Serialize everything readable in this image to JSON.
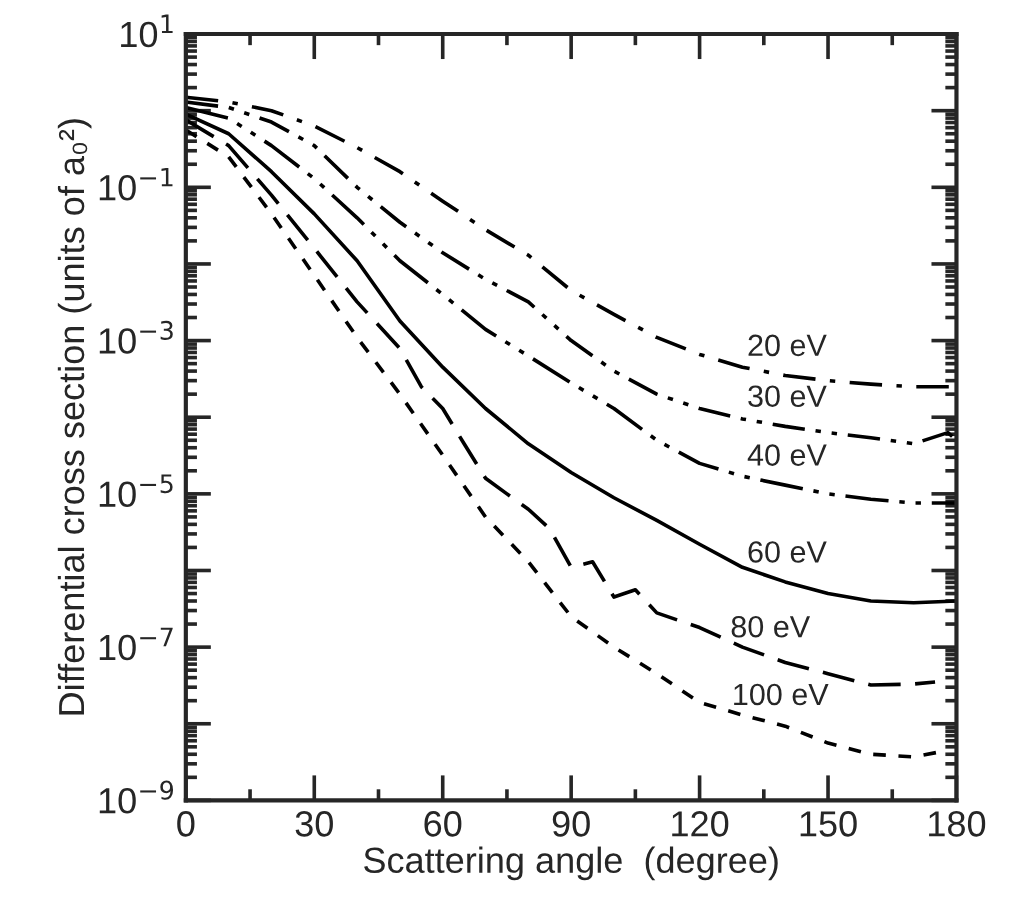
{
  "chart_data": {
    "type": "line",
    "xlabel": "Scattering angle  (degree)",
    "ylabel": "Differential cross section (units of a₀²)",
    "log": "y",
    "grid": false,
    "legend": false,
    "marker": "none",
    "xlim": [
      0,
      180
    ],
    "xticks": [
      0,
      30,
      60,
      90,
      120,
      150,
      180
    ],
    "ylim": [
      1e-09,
      10
    ],
    "yticks": [
      {
        "value": 10,
        "label": "10$^{1}$"
      },
      {
        "value": 1,
        "label": null
      },
      {
        "value": 0.1,
        "label": "10$^{−1}$"
      },
      {
        "value": 0.01,
        "label": null
      },
      {
        "value": 0.001,
        "label": "10$^{−3}$"
      },
      {
        "value": 0.0001,
        "label": null
      },
      {
        "value": 1e-05,
        "label": "10$^{−5}$"
      },
      {
        "value": 1e-06,
        "label": null
      },
      {
        "value": 1e-07,
        "label": "10$^{−7}$"
      },
      {
        "value": 1e-08,
        "label": null
      },
      {
        "value": 1e-09,
        "label": "10$^{−9}$"
      }
    ],
    "series": [
      {
        "name": "20 eV",
        "color": "#000000",
        "line_style": "dashdot",
        "x": [
          0,
          10,
          20,
          30,
          40,
          50,
          60,
          70,
          80,
          90,
          100,
          110,
          120,
          130,
          140,
          150,
          160,
          170,
          180
        ],
        "values": [
          1.5,
          1.3,
          1.0,
          0.63,
          0.33,
          0.16,
          0.066,
          0.028,
          0.013,
          0.0045,
          0.0022,
          0.0011,
          0.00066,
          0.00045,
          0.00035,
          0.0003,
          0.00027,
          0.00025,
          0.00025
        ]
      },
      {
        "name": "30 eV",
        "color": "#000000",
        "line_style": "dashdotdot",
        "x": [
          0,
          10,
          20,
          30,
          40,
          50,
          60,
          70,
          80,
          90,
          100,
          110,
          120,
          130,
          140,
          150,
          160,
          170,
          178,
          180
        ],
        "values": [
          1.3,
          1.1,
          0.71,
          0.35,
          0.1,
          0.035,
          0.014,
          0.0063,
          0.0032,
          0.001,
          0.0004,
          0.0002,
          0.00013,
          9.5e-05,
          7.6e-05,
          6.3e-05,
          5.4e-05,
          4.5e-05,
          6.3e-05,
          5e-05
        ]
      },
      {
        "name": "40 eV",
        "color": "#000000",
        "line_style": "longdashdotdot",
        "x": [
          0,
          10,
          20,
          30,
          40,
          50,
          60,
          70,
          80,
          90,
          100,
          110,
          120,
          130,
          140,
          150,
          160,
          170,
          180
        ],
        "values": [
          1.1,
          0.8,
          0.35,
          0.13,
          0.04,
          0.011,
          0.004,
          0.0014,
          0.00063,
          0.00028,
          0.00013,
          5e-05,
          2.5e-05,
          1.7e-05,
          1.3e-05,
          1e-05,
          8.5e-06,
          7.6e-06,
          7.6e-06
        ]
      },
      {
        "name": "60 eV",
        "color": "#000000",
        "line_style": "solid",
        "x": [
          0,
          10,
          20,
          30,
          40,
          50,
          60,
          70,
          80,
          90,
          100,
          110,
          120,
          130,
          140,
          150,
          160,
          170,
          180
        ],
        "values": [
          0.9,
          0.5,
          0.16,
          0.045,
          0.011,
          0.0018,
          0.00045,
          0.00013,
          4.5e-05,
          1.9e-05,
          8.9e-06,
          4.5e-06,
          2.2e-06,
          1.1e-06,
          7.1e-07,
          5e-07,
          4e-07,
          3.8e-07,
          4e-07
        ]
      },
      {
        "name": "80 eV",
        "color": "#000000",
        "line_style": "dashed",
        "x": [
          0,
          10,
          20,
          30,
          40,
          50,
          55,
          60,
          65,
          70,
          75,
          80,
          85,
          90,
          95,
          100,
          105,
          110,
          120,
          130,
          140,
          150,
          160,
          170,
          175
        ],
        "values": [
          0.76,
          0.35,
          0.079,
          0.016,
          0.0032,
          0.00079,
          0.00025,
          0.00013,
          4.5e-05,
          1.6e-05,
          1e-05,
          6.3e-06,
          3.5e-06,
          1.1e-06,
          1.3e-06,
          4.5e-07,
          5.6e-07,
          2.8e-07,
          1.8e-07,
          1e-07,
          6.3e-08,
          4.5e-08,
          3.2e-08,
          3.3e-08,
          3.5e-08
        ]
      },
      {
        "name": "100 eV",
        "color": "#000000",
        "line_style": "shortdashed",
        "x": [
          0,
          10,
          20,
          30,
          40,
          50,
          60,
          70,
          80,
          90,
          100,
          110,
          120,
          130,
          140,
          150,
          160,
          170,
          178
        ],
        "values": [
          0.56,
          0.25,
          0.045,
          0.0071,
          0.0011,
          0.0002,
          3.2e-05,
          5e-06,
          1.3e-06,
          2.5e-07,
          1e-07,
          4.5e-08,
          1.9e-08,
          1.3e-08,
          9.3e-09,
          5.6e-09,
          4e-09,
          3.7e-09,
          4.5e-09
        ]
      }
    ]
  }
}
